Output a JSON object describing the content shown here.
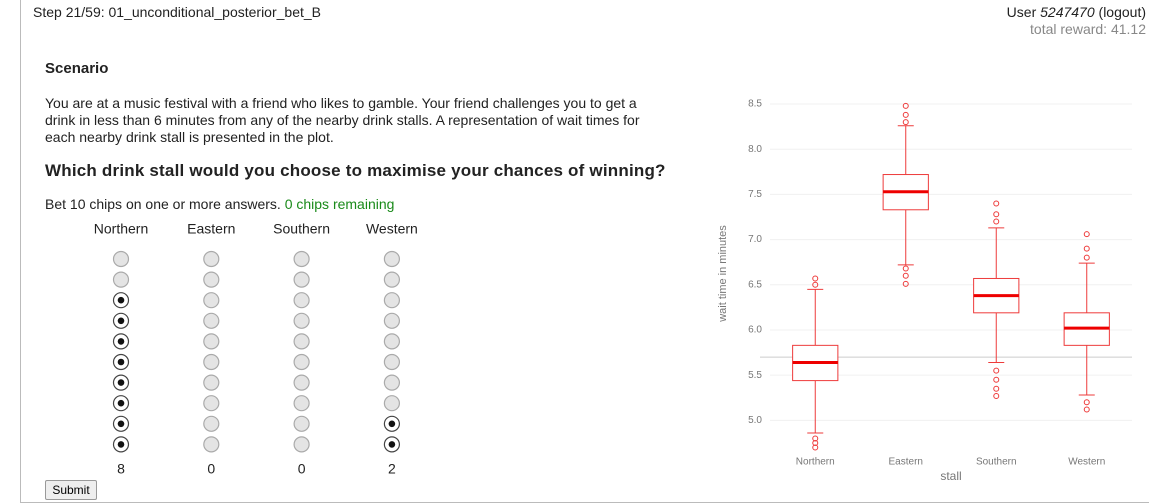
{
  "header": {
    "step": "Step 21/59: 01_unconditional_posterior_bet_B",
    "user_prefix": "User",
    "user_id": "5247470",
    "logout": "(logout)",
    "total_reward": "total reward: 41.12"
  },
  "scenario": {
    "heading": "Scenario",
    "text": "You are at a music festival with a friend who likes to gamble. Your friend challenges you to get a drink in less than 6 minutes from any of the nearby drink stalls. A representation of wait times for each nearby drink stall is presented in the plot.",
    "question": "Which drink stall would you choose to maximise your chances of winning?"
  },
  "bet": {
    "prefix": "Bet",
    "total_chips": 10,
    "suffix": "chips on one or more answers.",
    "remaining": "0 chips remaining",
    "options": [
      {
        "label": "Northern",
        "chips": 8
      },
      {
        "label": "Eastern",
        "chips": 0
      },
      {
        "label": "Southern",
        "chips": 0
      },
      {
        "label": "Western",
        "chips": 2
      }
    ],
    "submit": "Submit"
  },
  "chart_data": {
    "type": "box",
    "xlabel": "stall",
    "ylabel": "wait time in minutes",
    "categories": [
      "Northern",
      "Eastern",
      "Southern",
      "Western"
    ],
    "color": "#ee3b3b",
    "series": [
      {
        "name": "wait time in minutes",
        "whisker_low": [
          4.86,
          6.72,
          5.64,
          5.28
        ],
        "q1": [
          5.44,
          7.33,
          6.19,
          5.83
        ],
        "median": [
          5.64,
          7.53,
          6.38,
          6.02
        ],
        "q3": [
          5.83,
          7.72,
          6.57,
          6.19
        ],
        "whisker_high": [
          6.45,
          8.26,
          7.13,
          6.74
        ],
        "outliers": [
          [
            4.7,
            4.75,
            4.8,
            6.5,
            6.57
          ],
          [
            6.51,
            6.6,
            6.68,
            8.3,
            8.38,
            8.48
          ],
          [
            5.27,
            5.35,
            5.45,
            5.55,
            7.2,
            7.28,
            7.4
          ],
          [
            5.12,
            5.2,
            6.8,
            6.9,
            7.06
          ]
        ]
      }
    ],
    "hline": 5.7,
    "ylim": [
      4.65,
      8.6
    ],
    "yticks": [
      {
        "value": 5,
        "label": "5.0"
      },
      5.5,
      {
        "value": 6,
        "label": "6.0"
      },
      6.5,
      {
        "value": 7,
        "label": "7.0"
      },
      7.5,
      {
        "value": 8,
        "label": "8.0"
      },
      8.5
    ],
    "grid": true
  }
}
